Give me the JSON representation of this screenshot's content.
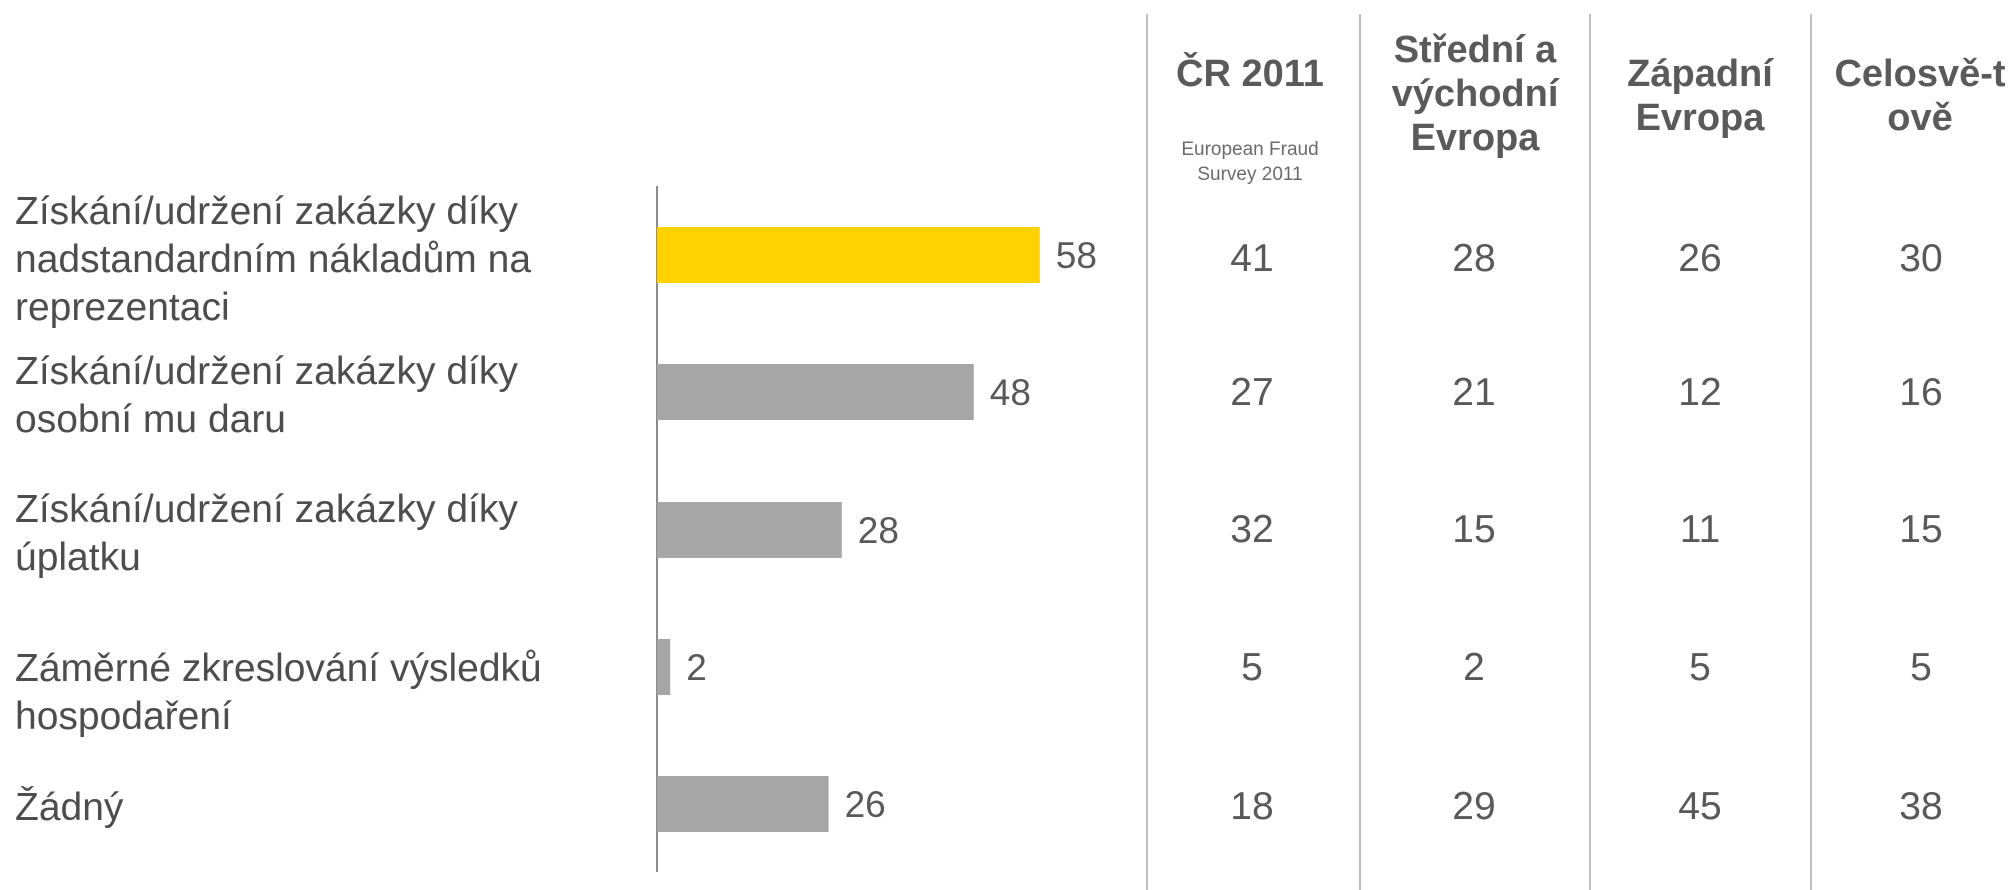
{
  "chart_data": {
    "type": "bar",
    "orientation": "horizontal",
    "categories": [
      "Získání/udržení zakázky díky nadstandardním nákladům na reprezentaci",
      "Získání/udržení zakázky díky osobní mu daru",
      "Získání/udržení zakázky díky úplatku",
      "Záměrné zkreslování výsledků hospodaření",
      "Žádný"
    ],
    "values": [
      58,
      48,
      28,
      2,
      26
    ],
    "highlight_index": 0,
    "colors": {
      "highlight": "#ffd200",
      "default": "#a6a6a6"
    },
    "value_labels": [
      "58",
      "48",
      "28",
      "2",
      "26"
    ],
    "xlim": [
      0,
      60
    ]
  },
  "table": {
    "columns": [
      {
        "title": "ČR 2011",
        "subtitle": "European Fraud Survey 2011"
      },
      {
        "title": "Střední a východní Evropa",
        "subtitle": ""
      },
      {
        "title": "Západní Evropa",
        "subtitle": ""
      },
      {
        "title": "Celosvě-tově",
        "subtitle": ""
      }
    ],
    "rows": [
      [
        "41",
        "28",
        "26",
        "30"
      ],
      [
        "27",
        "21",
        "12",
        "16"
      ],
      [
        "32",
        "15",
        "11",
        "15"
      ],
      [
        "5",
        "2",
        "5",
        "5"
      ],
      [
        "18",
        "29",
        "45",
        "38"
      ]
    ]
  }
}
